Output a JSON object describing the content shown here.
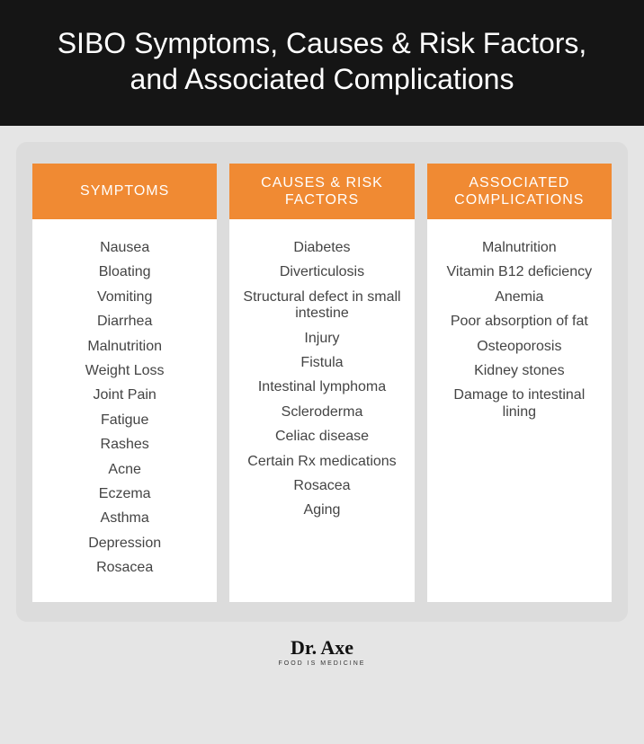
{
  "header": {
    "title": "SIBO Symptoms, Causes & Risk Factors, and Associated Complications"
  },
  "styles": {
    "header_bg": "#151515",
    "header_text": "#ffffff",
    "page_bg": "#e5e5e5",
    "panel_bg": "#dcdcdc",
    "column_bg": "#ffffff",
    "accent": "#f08a33",
    "accent_text": "#ffffff",
    "body_text": "#444444",
    "header_fontsize": 32,
    "col_header_fontsize": 16,
    "item_fontsize": 16
  },
  "columns": [
    {
      "header": "SYMPTOMS",
      "items": [
        "Nausea",
        "Bloating",
        "Vomiting",
        "Diarrhea",
        "Malnutrition",
        "Weight Loss",
        "Joint Pain",
        "Fatigue",
        "Rashes",
        "Acne",
        "Eczema",
        "Asthma",
        "Depression",
        "Rosacea"
      ]
    },
    {
      "header": "CAUSES & RISK FACTORS",
      "items": [
        "Diabetes",
        "Diverticulosis",
        "Structural defect in small intestine",
        "Injury",
        "Fistula",
        "Intestinal lymphoma",
        "Scleroderma",
        "Celiac disease",
        "Certain Rx medications",
        "Rosacea",
        "Aging"
      ]
    },
    {
      "header": "ASSOCIATED COMPLICATIONS",
      "items": [
        "Malnutrition",
        "Vitamin B12 deficiency",
        "Anemia",
        "Poor absorption of fat",
        "Osteoporosis",
        "Kidney stones",
        "Damage to intestinal lining"
      ]
    }
  ],
  "footer": {
    "brand_main": "Dr. Axe",
    "brand_sub": "FOOD IS MEDICINE"
  }
}
